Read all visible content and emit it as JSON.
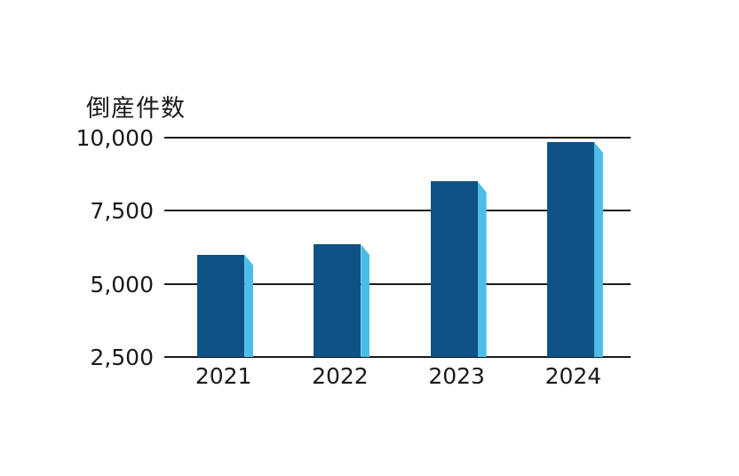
{
  "page": {
    "background_color": "#ffffff",
    "text_color": "#1a1a1a"
  },
  "chart_data": {
    "type": "bar",
    "title": "倒産件数",
    "categories": [
      "2021",
      "2022",
      "2023",
      "2024"
    ],
    "values": [
      6000,
      6350,
      8500,
      9850
    ],
    "xlabel": "",
    "ylabel": "倒産件数",
    "ylim": [
      2500,
      10000
    ],
    "y_ticks": [
      "10,000",
      "7,500",
      "5,000",
      "2,500"
    ],
    "y_tick_values": [
      10000,
      7500,
      5000,
      2500
    ],
    "grid": "horizontal",
    "legend": "none",
    "style": "pseudo-3d-bars",
    "bar_face_color": "#0E5286",
    "bar_side_color": "#4CBDE6",
    "gridline_color": "#1a1a1a"
  }
}
